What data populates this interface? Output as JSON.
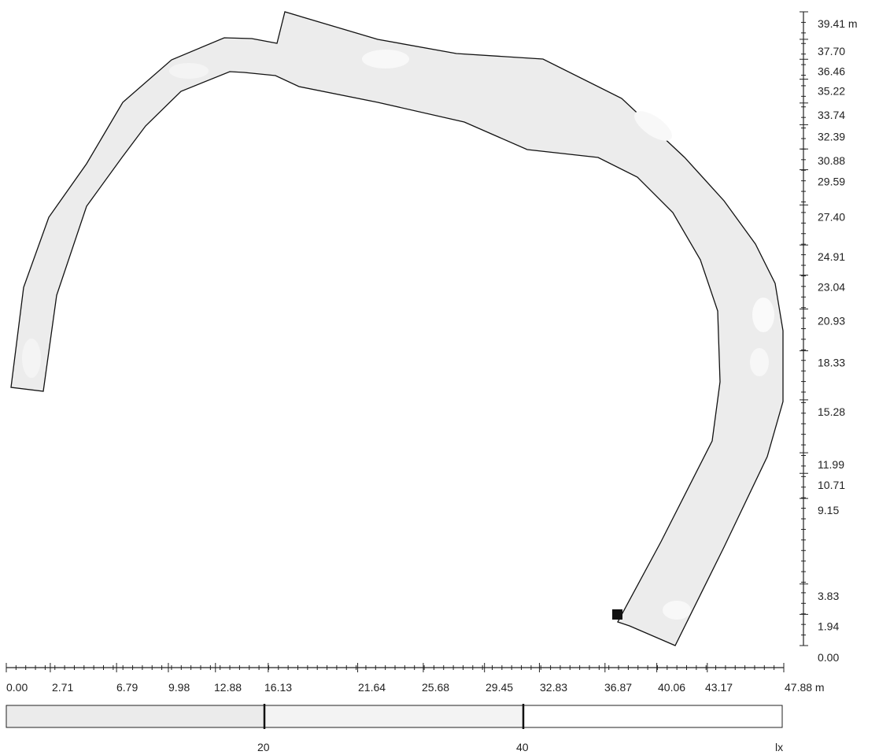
{
  "diagram": {
    "y_axis": {
      "unit": "m",
      "tick_labels": [
        "39.41 m",
        "37.70",
        "36.46",
        "35.22",
        "33.74",
        "32.39",
        "30.88",
        "29.59",
        "27.40",
        "24.91",
        "23.04",
        "20.93",
        "18.33",
        "15.28",
        "11.99",
        "10.71",
        "9.15",
        "3.83",
        "1.94",
        "0.00"
      ]
    },
    "x_axis": {
      "unit": "m",
      "tick_labels": [
        "0.00",
        "2.71",
        "6.79",
        "9.98",
        "12.88",
        "16.13",
        "21.64",
        "25.68",
        "29.45",
        "32.83",
        "36.87",
        "40.06",
        "43.17",
        "47.88 m"
      ]
    },
    "legend_bar": {
      "labels": [
        "20",
        "40",
        "lx"
      ],
      "colors": [
        "#ebebeb",
        "#f3f3f3",
        "#ffffff"
      ]
    },
    "colors": {
      "channel_fill": "#ececec",
      "channel_light": "#f7f7f7",
      "outline": "#111111",
      "marker": "#111111"
    }
  }
}
